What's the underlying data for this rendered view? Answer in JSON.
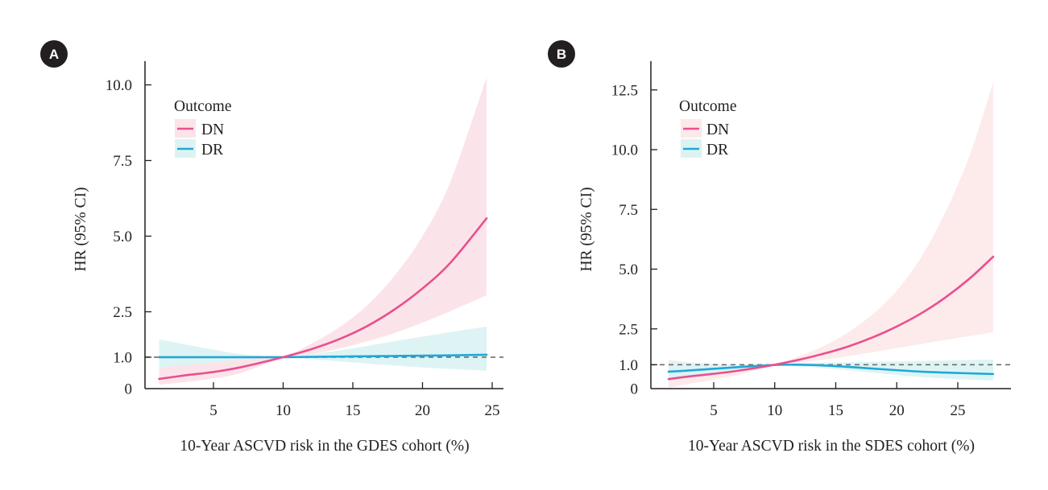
{
  "chart_data": [
    {
      "panel": "A",
      "type": "line",
      "title": "",
      "xlabel": "10-Year ASCVD risk in the GDES cohort (%)",
      "ylabel": "HR (95% CI)",
      "xlim": [
        0,
        26
      ],
      "ylim": [
        0,
        10.8
      ],
      "xticks": [
        5,
        10,
        15,
        20,
        25
      ],
      "xtick_labels": [
        "5",
        "10",
        "15",
        "20",
        "25"
      ],
      "yticks": [
        0,
        1.0,
        2.5,
        5.0,
        7.5,
        10.0
      ],
      "ytick_labels": [
        "0",
        "1.0",
        "2.5",
        "5.0",
        "7.5",
        "10.0"
      ],
      "reference_line": {
        "y": 1.0,
        "style": "dashed"
      },
      "legend": {
        "title": "Outcome",
        "position": "top-left",
        "entries": [
          "DN",
          "DR"
        ]
      },
      "series": [
        {
          "name": "DN",
          "color": "#e8508f",
          "band_color": "#fbe3e8",
          "x": [
            1.1,
            3,
            5,
            7,
            10,
            12,
            14,
            16,
            18,
            20,
            22,
            24.6
          ],
          "hr": [
            0.28,
            0.4,
            0.51,
            0.67,
            1.0,
            1.26,
            1.59,
            2.02,
            2.58,
            3.27,
            4.12,
            5.59
          ],
          "lower": [
            0.09,
            0.18,
            0.3,
            0.48,
            0.97,
            1.1,
            1.28,
            1.52,
            1.8,
            2.14,
            2.52,
            3.05
          ],
          "upper": [
            0.71,
            0.8,
            0.86,
            0.93,
            1.03,
            1.44,
            1.98,
            2.7,
            3.7,
            5.0,
            6.8,
            10.25
          ]
        },
        {
          "name": "DR",
          "color": "#1fa8d8",
          "band_color": "#dcf3f3",
          "x": [
            1.1,
            3,
            5,
            7,
            10,
            12,
            14,
            16,
            18,
            20,
            22,
            24.6
          ],
          "hr": [
            1.0,
            1.0,
            1.0,
            1.0,
            1.0,
            1.01,
            1.02,
            1.03,
            1.04,
            1.05,
            1.06,
            1.08
          ],
          "lower": [
            0.65,
            0.74,
            0.83,
            0.91,
            0.99,
            0.93,
            0.86,
            0.79,
            0.72,
            0.66,
            0.61,
            0.55
          ],
          "upper": [
            1.59,
            1.42,
            1.25,
            1.1,
            1.01,
            1.1,
            1.22,
            1.37,
            1.53,
            1.68,
            1.83,
            2.01
          ]
        }
      ]
    },
    {
      "panel": "B",
      "type": "line",
      "title": "",
      "xlabel": "10-Year ASCVD risk in the SDES cohort (%)",
      "ylabel": "HR (95% CI)",
      "xlim": [
        -0.2,
        29.5
      ],
      "ylim": [
        0,
        13.5
      ],
      "xticks": [
        5,
        10,
        15,
        20,
        25
      ],
      "xtick_labels": [
        "5",
        "10",
        "15",
        "20",
        "25"
      ],
      "yticks": [
        0,
        1.0,
        2.5,
        5.0,
        7.5,
        10.0,
        12.5
      ],
      "ytick_labels": [
        "0",
        "1.0",
        "2.5",
        "5.0",
        "7.5",
        "10.0",
        "12.5"
      ],
      "reference_line": {
        "y": 1.0,
        "style": "dashed"
      },
      "legend": {
        "title": "Outcome",
        "position": "top-left",
        "entries": [
          "DN",
          "DR"
        ]
      },
      "series": [
        {
          "name": "DN",
          "color": "#e8508f",
          "band_color": "#fde9ea",
          "x": [
            1.3,
            3,
            5,
            7,
            10,
            12,
            14,
            16,
            18,
            20,
            22,
            24,
            26,
            27.9
          ],
          "hr": [
            0.4,
            0.51,
            0.62,
            0.75,
            1.0,
            1.21,
            1.46,
            1.76,
            2.14,
            2.6,
            3.15,
            3.82,
            4.62,
            5.52
          ],
          "lower": [
            0.03,
            0.2,
            0.38,
            0.58,
            0.97,
            1.08,
            1.21,
            1.36,
            1.52,
            1.7,
            1.87,
            2.04,
            2.2,
            2.36
          ],
          "upper": [
            1.2,
            1.1,
            1.02,
            0.98,
            1.03,
            1.36,
            1.78,
            2.35,
            3.1,
            4.1,
            5.5,
            7.4,
            9.8,
            12.8
          ]
        },
        {
          "name": "DR",
          "color": "#1fa8d8",
          "band_color": "#dcf3f3",
          "x": [
            1.3,
            3,
            5,
            7,
            10,
            12,
            14,
            16,
            18,
            20,
            22,
            24,
            26,
            27.9
          ],
          "hr": [
            0.71,
            0.76,
            0.83,
            0.9,
            0.99,
            1.0,
            0.97,
            0.91,
            0.84,
            0.77,
            0.71,
            0.67,
            0.64,
            0.61
          ],
          "lower": [
            0.34,
            0.48,
            0.62,
            0.78,
            0.96,
            0.93,
            0.86,
            0.77,
            0.67,
            0.57,
            0.49,
            0.42,
            0.37,
            0.34
          ],
          "upper": [
            1.14,
            1.08,
            1.04,
            1.01,
            1.02,
            1.07,
            1.09,
            1.1,
            1.12,
            1.14,
            1.16,
            1.18,
            1.2,
            1.21
          ]
        }
      ]
    }
  ]
}
